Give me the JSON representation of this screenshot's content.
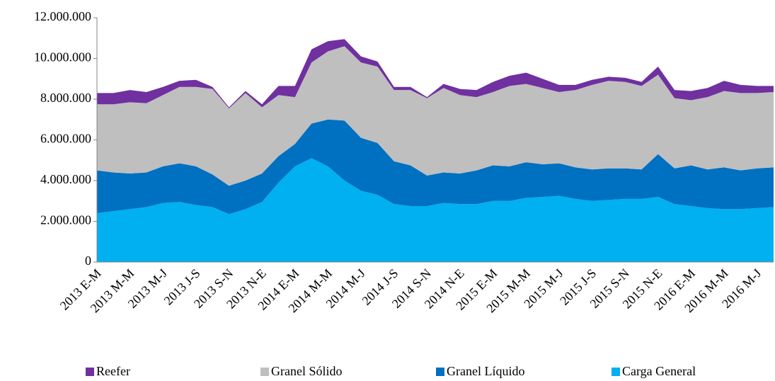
{
  "chart_data": {
    "type": "stacked_area",
    "categories": [
      "2013 E-M",
      null,
      "2013 M-M",
      null,
      "2013 M-J",
      null,
      "2013 J-S",
      null,
      "2013 S-N",
      null,
      "2013 N-E",
      null,
      "2014 E-M",
      null,
      "2014 M-M",
      null,
      "2014 M-J",
      null,
      "2014 J-S",
      null,
      "2014 S-N",
      null,
      "2014 N-E",
      null,
      "2015 E-M",
      null,
      "2015 M-M",
      null,
      "2015 M-J",
      null,
      "2015 J-S",
      null,
      "2015 S-N",
      null,
      "2015 N-E",
      null,
      "2016 E-M",
      null,
      "2016 M-M",
      null,
      "2016 M-J",
      null
    ],
    "series": [
      {
        "name": "Reefer",
        "color": "#7030a0",
        "values": [
          550000,
          550000,
          600000,
          550000,
          400000,
          300000,
          350000,
          100000,
          50000,
          100000,
          150000,
          450000,
          550000,
          650000,
          500000,
          350000,
          300000,
          250000,
          150000,
          150000,
          50000,
          200000,
          300000,
          350000,
          500000,
          500000,
          550000,
          450000,
          350000,
          250000,
          250000,
          200000,
          200000,
          200000,
          400000,
          400000,
          450000,
          450000,
          500000,
          400000,
          350000,
          300000
        ]
      },
      {
        "name": "Granel Sólido",
        "color": "#bfbfbf",
        "values": [
          3250000,
          3350000,
          3500000,
          3400000,
          3500000,
          3750000,
          3900000,
          4200000,
          3800000,
          4300000,
          3250000,
          3000000,
          2300000,
          3000000,
          3350000,
          3650000,
          3700000,
          3750000,
          3500000,
          3700000,
          3800000,
          4150000,
          3850000,
          3600000,
          3600000,
          3950000,
          3850000,
          3750000,
          3500000,
          3800000,
          4150000,
          4300000,
          4250000,
          4100000,
          3900000,
          3450000,
          3200000,
          3550000,
          3750000,
          3800000,
          3700000,
          3700000
        ]
      },
      {
        "name": "Granel Líquido",
        "color": "#0070c0",
        "values": [
          2100000,
          1900000,
          1750000,
          1700000,
          1800000,
          1900000,
          1900000,
          1600000,
          1400000,
          1400000,
          1400000,
          1300000,
          1100000,
          1700000,
          2300000,
          2950000,
          2600000,
          2550000,
          2100000,
          2000000,
          1500000,
          1500000,
          1500000,
          1650000,
          1750000,
          1700000,
          1750000,
          1600000,
          1600000,
          1550000,
          1550000,
          1550000,
          1500000,
          1450000,
          2100000,
          1750000,
          2000000,
          1900000,
          2050000,
          1900000,
          1950000,
          1950000
        ]
      },
      {
        "name": "Carga General",
        "color": "#00b0f0",
        "values": [
          2400000,
          2500000,
          2600000,
          2700000,
          2900000,
          2950000,
          2800000,
          2700000,
          2350000,
          2600000,
          2950000,
          3900000,
          4700000,
          5100000,
          4700000,
          4000000,
          3500000,
          3300000,
          2850000,
          2750000,
          2750000,
          2900000,
          2850000,
          2850000,
          3000000,
          3000000,
          3150000,
          3200000,
          3250000,
          3100000,
          3000000,
          3050000,
          3100000,
          3100000,
          3200000,
          2850000,
          2750000,
          2650000,
          2600000,
          2600000,
          2650000,
          2700000
        ]
      }
    ],
    "ylim": [
      0,
      12000000
    ],
    "yticks": [
      0,
      {
        "value": 2000000,
        "label": "2.000.000"
      },
      {
        "value": 4000000,
        "label": "4.000.000"
      },
      {
        "value": 6000000,
        "label": "6.000.000"
      },
      {
        "value": 8000000,
        "label": "8.000.000"
      },
      {
        "value": 10000000,
        "label": "10.000.000"
      },
      {
        "value": 12000000,
        "label": "12.000.000"
      }
    ],
    "grid": false,
    "legend": "bottom"
  }
}
